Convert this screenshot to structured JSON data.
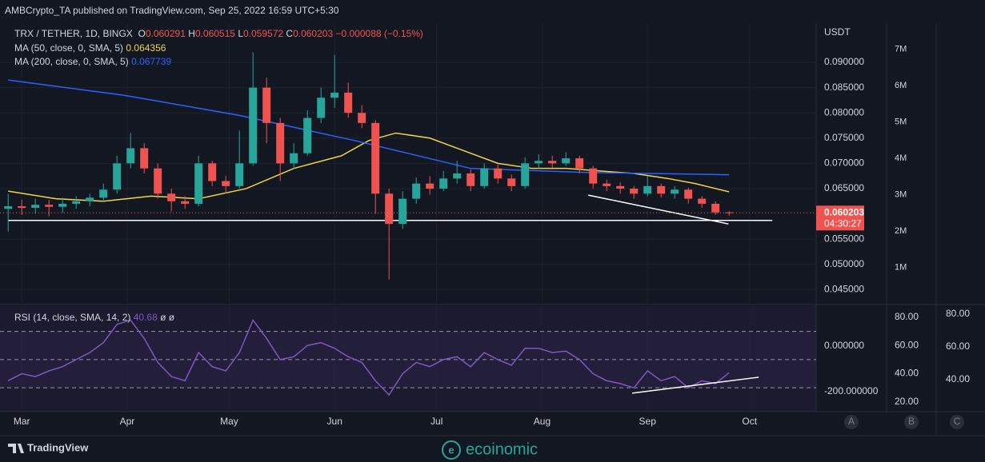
{
  "header": {
    "text": "AMBCrypto_TA published on TradingView.com, Sep 25, 2022 16:59 UTC+5:30"
  },
  "chart_data": [
    {
      "type": "candlestick",
      "title": "TRX / TETHER, 1D, BINGX",
      "ohlc_letters": [
        "O",
        "H",
        "L",
        "C"
      ],
      "change": "−0.000088 (−0.15%)",
      "x": [
        56,
        60,
        64,
        68,
        72,
        76,
        80,
        84,
        88,
        92,
        96,
        100,
        104,
        108,
        112,
        116,
        120,
        124,
        128,
        132,
        136,
        140,
        144,
        148,
        152,
        156,
        160,
        164,
        168,
        172,
        176,
        180,
        184,
        188,
        192,
        196,
        200,
        204,
        208,
        212,
        216,
        220,
        224,
        228,
        232,
        236,
        240,
        244,
        248,
        252,
        256,
        260,
        264,
        268
      ],
      "open": [
        0.061,
        0.0615,
        0.0612,
        0.0618,
        0.0614,
        0.062,
        0.0625,
        0.0632,
        0.0648,
        0.07,
        0.073,
        0.069,
        0.064,
        0.0625,
        0.062,
        0.07,
        0.0665,
        0.0655,
        0.07,
        0.085,
        0.078,
        0.07,
        0.072,
        0.079,
        0.083,
        0.084,
        0.08,
        0.078,
        0.064,
        0.058,
        0.063,
        0.066,
        0.065,
        0.067,
        0.068,
        0.0655,
        0.069,
        0.067,
        0.0655,
        0.07,
        0.0705,
        0.07,
        0.071,
        0.069,
        0.066,
        0.0655,
        0.065,
        0.064,
        0.0655,
        0.064,
        0.0648,
        0.063,
        0.062,
        0.060291
      ],
      "high": [
        0.064,
        0.0628,
        0.063,
        0.0628,
        0.0632,
        0.0635,
        0.064,
        0.066,
        0.0715,
        0.076,
        0.074,
        0.07,
        0.065,
        0.0635,
        0.0715,
        0.0705,
        0.0675,
        0.0765,
        0.092,
        0.087,
        0.079,
        0.074,
        0.0805,
        0.085,
        0.0915,
        0.086,
        0.0815,
        0.0785,
        0.065,
        0.0645,
        0.0672,
        0.0675,
        0.0685,
        0.0705,
        0.0688,
        0.07,
        0.0698,
        0.0678,
        0.0712,
        0.0718,
        0.0715,
        0.0722,
        0.0715,
        0.0695,
        0.0668,
        0.0662,
        0.0655,
        0.0675,
        0.066,
        0.0655,
        0.0652,
        0.0635,
        0.0625,
        0.060515
      ],
      "low": [
        0.0565,
        0.0598,
        0.06,
        0.0595,
        0.0602,
        0.061,
        0.0615,
        0.0625,
        0.064,
        0.069,
        0.068,
        0.063,
        0.0605,
        0.061,
        0.0615,
        0.0655,
        0.064,
        0.065,
        0.0695,
        0.074,
        0.0665,
        0.069,
        0.0715,
        0.078,
        0.081,
        0.079,
        0.077,
        0.06,
        0.047,
        0.057,
        0.062,
        0.0638,
        0.0645,
        0.066,
        0.0645,
        0.065,
        0.066,
        0.0645,
        0.065,
        0.069,
        0.0692,
        0.0695,
        0.068,
        0.065,
        0.0645,
        0.064,
        0.063,
        0.0635,
        0.0632,
        0.063,
        0.062,
        0.0612,
        0.0598,
        0.059572
      ],
      "close": [
        0.0615,
        0.0612,
        0.0618,
        0.0614,
        0.062,
        0.0625,
        0.0632,
        0.0648,
        0.07,
        0.073,
        0.069,
        0.064,
        0.0625,
        0.062,
        0.07,
        0.0665,
        0.0655,
        0.07,
        0.085,
        0.078,
        0.07,
        0.072,
        0.079,
        0.083,
        0.084,
        0.08,
        0.078,
        0.064,
        0.058,
        0.063,
        0.066,
        0.065,
        0.067,
        0.068,
        0.0655,
        0.069,
        0.067,
        0.0655,
        0.07,
        0.0705,
        0.07,
        0.071,
        0.069,
        0.066,
        0.0655,
        0.065,
        0.064,
        0.0655,
        0.064,
        0.0648,
        0.063,
        0.062,
        0.0603,
        0.060203
      ],
      "up_color": "#26a69a",
      "down_color": "#ef5350",
      "series": [
        {
          "name": "MA (50, close, 0, SMA, 5)",
          "color": "#f0d34a",
          "x": [
            56,
            70,
            84,
            98,
            112,
            126,
            140,
            154,
            162,
            170,
            180,
            190,
            200,
            210,
            220,
            230,
            240,
            250,
            258,
            268
          ],
          "values": [
            0.0645,
            0.063,
            0.0625,
            0.0635,
            0.063,
            0.065,
            0.069,
            0.0715,
            0.0745,
            0.076,
            0.075,
            0.0725,
            0.07,
            0.069,
            0.069,
            0.0685,
            0.068,
            0.067,
            0.066,
            0.064356
          ]
        },
        {
          "name": "MA (200, close, 0, SMA, 5)",
          "color": "#2962ff",
          "x": [
            56,
            90,
            124,
            158,
            192,
            226,
            268
          ],
          "values": [
            0.0865,
            0.0835,
            0.0795,
            0.0745,
            0.069,
            0.0682,
            0.067739
          ]
        }
      ],
      "currency": "USDT",
      "countdown": "04:30:27",
      "xlim": [
        53.6,
        293.6
      ],
      "xticks": [
        {
          "value": 60,
          "label": "Mar"
        },
        {
          "value": 91,
          "label": "Apr"
        },
        {
          "value": 121,
          "label": "May"
        },
        {
          "value": 152,
          "label": "Jun"
        },
        {
          "value": 182,
          "label": "Jul"
        },
        {
          "value": 213,
          "label": "Aug"
        },
        {
          "value": 244,
          "label": "Sep"
        },
        {
          "value": 274,
          "label": "Oct"
        }
      ],
      "ylim": [
        0.0422,
        0.0976
      ],
      "yticks": [
        {
          "value": 0.09,
          "label": "0.090000"
        },
        {
          "value": 0.085,
          "label": "0.085000"
        },
        {
          "value": 0.08,
          "label": "0.080000"
        },
        {
          "value": 0.075,
          "label": "0.075000"
        },
        {
          "value": 0.07,
          "label": "0.070000"
        },
        {
          "value": 0.065,
          "label": "0.065000"
        },
        {
          "value": 0.055,
          "label": "0.055000"
        },
        {
          "value": 0.05,
          "label": "0.050000"
        },
        {
          "value": 0.045,
          "label": "0.045000"
        }
      ],
      "y2lim": [
        0,
        7690000
      ],
      "y2ticks": [
        {
          "value": 7000000,
          "label": "7M"
        },
        {
          "value": 6000000,
          "label": "6M"
        },
        {
          "value": 5000000,
          "label": "5M"
        },
        {
          "value": 4000000,
          "label": "4M"
        },
        {
          "value": 3000000,
          "label": "3M"
        },
        {
          "value": 2000000,
          "label": "2M"
        },
        {
          "value": 1000000,
          "label": "1M"
        }
      ],
      "drawings": [
        {
          "x": [
            56,
            280.7
          ],
          "y": [
            0.0587,
            0.0587
          ]
        },
        {
          "x": [
            226.6,
            267.8
          ],
          "y": [
            0.0637,
            0.058
          ]
        }
      ]
    },
    {
      "type": "line",
      "title": "RSI (14, close, SMA, 14, 2)",
      "flags": "ø ø",
      "color": "#7e57c2",
      "values": [
        35,
        40,
        38,
        42,
        45,
        50,
        55,
        62,
        75,
        78,
        65,
        48,
        38,
        35,
        55,
        45,
        42,
        55,
        78,
        65,
        50,
        52,
        60,
        62,
        58,
        52,
        48,
        35,
        25,
        40,
        48,
        45,
        50,
        52,
        45,
        55,
        50,
        46,
        58,
        58,
        55,
        56,
        50,
        40,
        35,
        33,
        30,
        42,
        35,
        38,
        30,
        35,
        33,
        40.68
      ],
      "ylim": [
        13.1,
        87.9
      ],
      "yticks": [
        {
          "value": 80,
          "label": "80.00"
        },
        {
          "value": 60,
          "label": "60.00"
        },
        {
          "value": 40,
          "label": "40.00"
        },
        {
          "value": 20,
          "label": "20.00"
        }
      ],
      "y2lim": [
        20.5,
        84.9
      ],
      "y2ticks": [
        {
          "value": 80,
          "label": "80.00"
        },
        {
          "value": 60,
          "label": "60.00"
        },
        {
          "value": 40,
          "label": "40.00"
        }
      ],
      "y3lim": [
        -287.7,
        175.4
      ],
      "y3ticks": [
        {
          "value": 0,
          "label": "0.000000"
        },
        {
          "value": -200,
          "label": "-200.000000"
        }
      ],
      "levels": [
        70,
        50,
        30
      ],
      "drawings": [
        {
          "x": [
            239.5,
            276.7
          ],
          "y": [
            26.2,
            37.5
          ]
        }
      ]
    }
  ],
  "footer": {
    "brand": "TradingView",
    "watermark": "ecoinomic",
    "buttons": [
      "A",
      "B",
      "C"
    ]
  }
}
